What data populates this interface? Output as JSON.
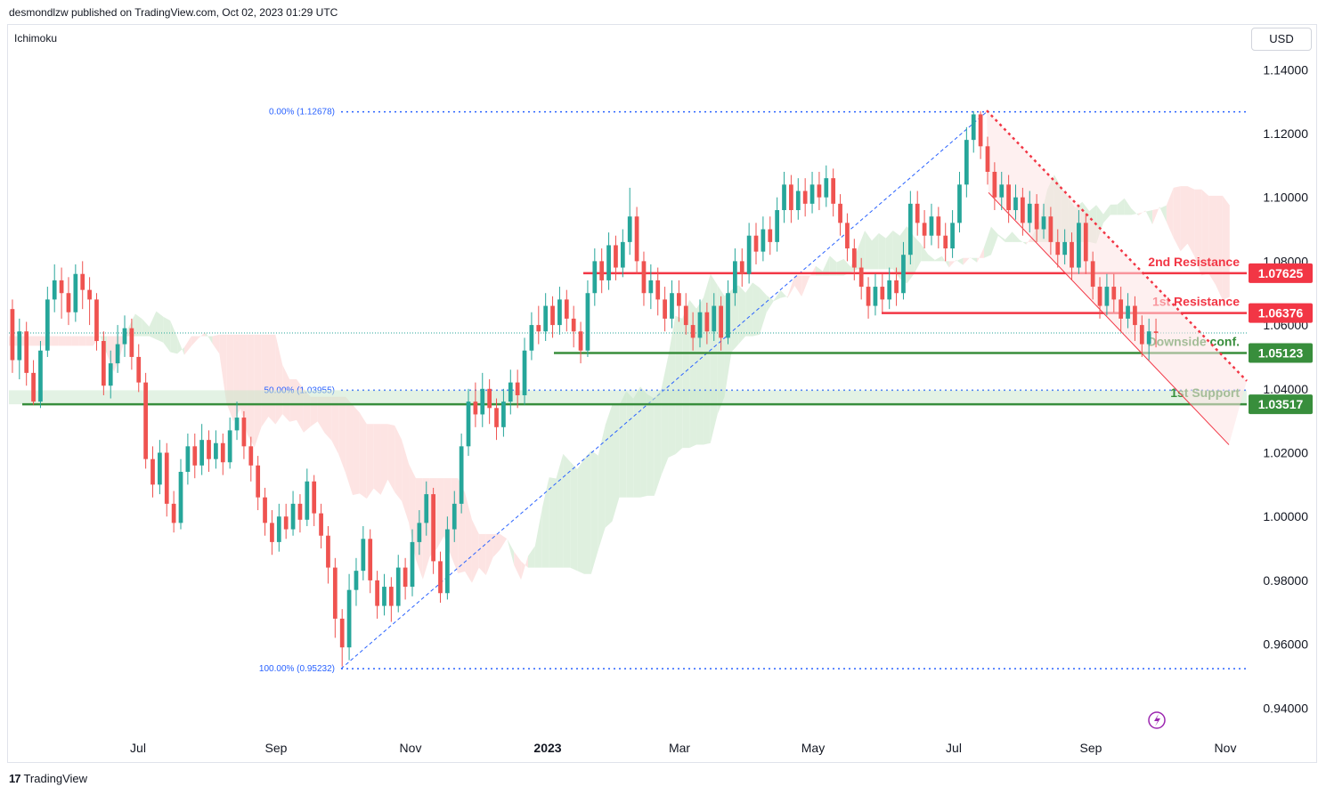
{
  "header": {
    "published": "desmondlzw published on TradingView.com, Oct 02, 2023 01:29 UTC",
    "indicator": "Ichimoku",
    "currency": "USD",
    "footer_logo": "TradingView"
  },
  "colors": {
    "up": "#26a69a",
    "down": "#ef5350",
    "resistance": "#f23645",
    "support": "#388e3c",
    "fib": "#2962ff",
    "cloud_bull": "#dff0df",
    "cloud_bear": "#fde4e3"
  },
  "chart_data": {
    "type": "candlestick",
    "ylim": [
      0.932,
      1.149
    ],
    "y_ticks": [
      "1.14000",
      "1.12000",
      "1.10000",
      "1.08000",
      "1.06000",
      "1.04000",
      "1.02000",
      "1.00000",
      "0.98000",
      "0.96000",
      "0.94000"
    ],
    "x_ticks": [
      "Jul",
      "Sep",
      "Nov",
      "2023",
      "Mar",
      "May",
      "Jul",
      "Sep",
      "Nov"
    ],
    "fib_levels": [
      {
        "label": "0.00% (1.12678)",
        "value": 1.12678
      },
      {
        "label": "50.00% (1.03955)",
        "value": 1.03955
      },
      {
        "label": "100.00% (0.95232)",
        "value": 0.95232
      }
    ],
    "levels": [
      {
        "name": "2nd Resistance",
        "value": 1.07625,
        "tag": "1.07625",
        "kind": "resistance"
      },
      {
        "name": "1st Resistance",
        "value": 1.06376,
        "tag": "1.06376",
        "kind": "resistance"
      },
      {
        "name": "Downside conf.",
        "value": 1.05123,
        "tag": "1.05123",
        "kind": "support"
      },
      {
        "name": "1st Support",
        "value": 1.03517,
        "tag": "1.03517",
        "kind": "support"
      }
    ],
    "last_price": 1.0575,
    "series": [
      {
        "values": [
          [
            1.065,
            1.049,
            1.068,
            1.045
          ],
          [
            1.049,
            1.058,
            1.062,
            1.043
          ],
          [
            1.058,
            1.045,
            1.061,
            1.041
          ],
          [
            1.045,
            1.036,
            1.049,
            1.035
          ],
          [
            1.036,
            1.052,
            1.055,
            1.034
          ],
          [
            1.052,
            1.068,
            1.072,
            1.05
          ],
          [
            1.068,
            1.074,
            1.079,
            1.064
          ],
          [
            1.074,
            1.07,
            1.078,
            1.062
          ],
          [
            1.07,
            1.064,
            1.075,
            1.06
          ],
          [
            1.064,
            1.076,
            1.079,
            1.061
          ],
          [
            1.076,
            1.071,
            1.08,
            1.065
          ],
          [
            1.071,
            1.068,
            1.075,
            1.06
          ],
          [
            1.068,
            1.055,
            1.07,
            1.052
          ],
          [
            1.055,
            1.041,
            1.058,
            1.038
          ],
          [
            1.041,
            1.048,
            1.052,
            1.037
          ],
          [
            1.048,
            1.054,
            1.06,
            1.045
          ],
          [
            1.054,
            1.059,
            1.063,
            1.05
          ],
          [
            1.059,
            1.05,
            1.062,
            1.046
          ],
          [
            1.05,
            1.042,
            1.054,
            1.039
          ],
          [
            1.042,
            1.018,
            1.045,
            1.015
          ],
          [
            1.018,
            1.01,
            1.022,
            1.006
          ],
          [
            1.01,
            1.02,
            1.024,
            1.007
          ],
          [
            1.02,
            1.004,
            1.023,
            1.0
          ],
          [
            1.004,
            0.998,
            1.008,
            0.995
          ],
          [
            0.998,
            1.014,
            1.018,
            0.996
          ],
          [
            1.014,
            1.022,
            1.026,
            1.01
          ],
          [
            1.022,
            1.016,
            1.026,
            1.012
          ],
          [
            1.016,
            1.024,
            1.029,
            1.013
          ],
          [
            1.024,
            1.018,
            1.027,
            1.014
          ],
          [
            1.018,
            1.023,
            1.027,
            1.015
          ],
          [
            1.023,
            1.017,
            1.026,
            1.013
          ],
          [
            1.017,
            1.027,
            1.031,
            1.015
          ],
          [
            1.027,
            1.031,
            1.036,
            1.024
          ],
          [
            1.031,
            1.022,
            1.033,
            1.018
          ],
          [
            1.022,
            1.016,
            1.025,
            1.011
          ],
          [
            1.016,
            1.006,
            1.019,
            1.002
          ],
          [
            1.006,
            0.998,
            1.009,
            0.994
          ],
          [
            0.998,
            0.992,
            1.002,
            0.988
          ],
          [
            0.992,
            1.0,
            1.004,
            0.989
          ],
          [
            1.0,
            0.996,
            1.004,
            0.993
          ],
          [
            0.996,
            1.004,
            1.008,
            0.994
          ],
          [
            1.004,
            0.999,
            1.007,
            0.995
          ],
          [
            0.999,
            1.011,
            1.015,
            0.997
          ],
          [
            1.011,
            1.001,
            1.013,
            0.997
          ],
          [
            1.001,
            0.994,
            1.004,
            0.99
          ],
          [
            0.994,
            0.984,
            0.997,
            0.979
          ],
          [
            0.984,
            0.968,
            0.987,
            0.962
          ],
          [
            0.968,
            0.959,
            0.971,
            0.953
          ],
          [
            0.959,
            0.977,
            0.982,
            0.955
          ],
          [
            0.977,
            0.983,
            0.987,
            0.972
          ],
          [
            0.983,
            0.993,
            0.997,
            0.98
          ],
          [
            0.993,
            0.98,
            0.996,
            0.976
          ],
          [
            0.98,
            0.972,
            0.983,
            0.968
          ],
          [
            0.972,
            0.978,
            0.982,
            0.969
          ],
          [
            0.978,
            0.972,
            0.981,
            0.967
          ],
          [
            0.972,
            0.984,
            0.988,
            0.97
          ],
          [
            0.984,
            0.978,
            0.987,
            0.974
          ],
          [
            0.978,
            0.992,
            0.996,
            0.975
          ],
          [
            0.992,
            0.998,
            1.002,
            0.988
          ],
          [
            0.998,
            1.007,
            1.011,
            0.994
          ],
          [
            1.007,
            0.986,
            1.009,
            0.982
          ],
          [
            0.986,
            0.976,
            0.989,
            0.973
          ],
          [
            0.976,
            0.996,
            1.0,
            0.974
          ],
          [
            0.996,
            1.004,
            1.008,
            0.992
          ],
          [
            1.004,
            1.022,
            1.026,
            1.001
          ],
          [
            1.022,
            1.036,
            1.04,
            1.019
          ],
          [
            1.036,
            1.032,
            1.042,
            1.028
          ],
          [
            1.032,
            1.04,
            1.045,
            1.028
          ],
          [
            1.04,
            1.034,
            1.043,
            1.029
          ],
          [
            1.034,
            1.028,
            1.037,
            1.024
          ],
          [
            1.028,
            1.036,
            1.04,
            1.025
          ],
          [
            1.036,
            1.042,
            1.046,
            1.032
          ],
          [
            1.042,
            1.038,
            1.046,
            1.034
          ],
          [
            1.038,
            1.052,
            1.056,
            1.035
          ],
          [
            1.052,
            1.06,
            1.064,
            1.049
          ],
          [
            1.06,
            1.058,
            1.066,
            1.054
          ],
          [
            1.058,
            1.066,
            1.07,
            1.055
          ],
          [
            1.066,
            1.06,
            1.069,
            1.056
          ],
          [
            1.06,
            1.068,
            1.072,
            1.057
          ],
          [
            1.068,
            1.062,
            1.071,
            1.058
          ],
          [
            1.062,
            1.058,
            1.066,
            1.053
          ],
          [
            1.058,
            1.052,
            1.061,
            1.048
          ],
          [
            1.052,
            1.07,
            1.074,
            1.05
          ],
          [
            1.07,
            1.08,
            1.084,
            1.066
          ],
          [
            1.08,
            1.074,
            1.084,
            1.07
          ],
          [
            1.074,
            1.085,
            1.089,
            1.071
          ],
          [
            1.085,
            1.078,
            1.088,
            1.074
          ],
          [
            1.078,
            1.086,
            1.09,
            1.075
          ],
          [
            1.086,
            1.094,
            1.103,
            1.082
          ],
          [
            1.094,
            1.08,
            1.097,
            1.076
          ],
          [
            1.08,
            1.07,
            1.083,
            1.066
          ],
          [
            1.07,
            1.074,
            1.079,
            1.065
          ],
          [
            1.074,
            1.068,
            1.078,
            1.063
          ],
          [
            1.068,
            1.062,
            1.072,
            1.058
          ],
          [
            1.062,
            1.07,
            1.074,
            1.059
          ],
          [
            1.07,
            1.066,
            1.074,
            1.061
          ],
          [
            1.066,
            1.06,
            1.07,
            1.057
          ],
          [
            1.06,
            1.056,
            1.064,
            1.052
          ],
          [
            1.056,
            1.064,
            1.068,
            1.053
          ],
          [
            1.064,
            1.058,
            1.067,
            1.054
          ],
          [
            1.058,
            1.066,
            1.07,
            1.055
          ],
          [
            1.066,
            1.056,
            1.069,
            1.052
          ],
          [
            1.056,
            1.07,
            1.074,
            1.054
          ],
          [
            1.07,
            1.08,
            1.084,
            1.066
          ],
          [
            1.08,
            1.076,
            1.084,
            1.072
          ],
          [
            1.076,
            1.088,
            1.092,
            1.073
          ],
          [
            1.088,
            1.083,
            1.092,
            1.079
          ],
          [
            1.083,
            1.09,
            1.094,
            1.08
          ],
          [
            1.09,
            1.086,
            1.094,
            1.082
          ],
          [
            1.086,
            1.096,
            1.1,
            1.083
          ],
          [
            1.096,
            1.104,
            1.108,
            1.092
          ],
          [
            1.104,
            1.096,
            1.107,
            1.092
          ],
          [
            1.096,
            1.102,
            1.106,
            1.093
          ],
          [
            1.102,
            1.098,
            1.106,
            1.094
          ],
          [
            1.098,
            1.104,
            1.108,
            1.095
          ],
          [
            1.104,
            1.1,
            1.108,
            1.096
          ],
          [
            1.1,
            1.106,
            1.11,
            1.097
          ],
          [
            1.106,
            1.098,
            1.109,
            1.094
          ],
          [
            1.098,
            1.092,
            1.101,
            1.088
          ],
          [
            1.092,
            1.084,
            1.095,
            1.08
          ],
          [
            1.084,
            1.078,
            1.087,
            1.074
          ],
          [
            1.078,
            1.072,
            1.081,
            1.068
          ],
          [
            1.072,
            1.066,
            1.075,
            1.062
          ],
          [
            1.066,
            1.072,
            1.076,
            1.063
          ],
          [
            1.072,
            1.068,
            1.076,
            1.064
          ],
          [
            1.068,
            1.074,
            1.078,
            1.065
          ],
          [
            1.074,
            1.07,
            1.078,
            1.066
          ],
          [
            1.07,
            1.082,
            1.086,
            1.068
          ],
          [
            1.082,
            1.098,
            1.102,
            1.079
          ],
          [
            1.098,
            1.092,
            1.102,
            1.088
          ],
          [
            1.092,
            1.088,
            1.096,
            1.084
          ],
          [
            1.088,
            1.094,
            1.098,
            1.085
          ],
          [
            1.094,
            1.088,
            1.097,
            1.084
          ],
          [
            1.088,
            1.084,
            1.092,
            1.08
          ],
          [
            1.084,
            1.092,
            1.096,
            1.081
          ],
          [
            1.092,
            1.104,
            1.108,
            1.089
          ],
          [
            1.104,
            1.118,
            1.122,
            1.1
          ],
          [
            1.118,
            1.126,
            1.127,
            1.114
          ],
          [
            1.126,
            1.116,
            1.127,
            1.112
          ],
          [
            1.116,
            1.108,
            1.119,
            1.104
          ],
          [
            1.108,
            1.1,
            1.111,
            1.096
          ],
          [
            1.1,
            1.104,
            1.108,
            1.096
          ],
          [
            1.104,
            1.096,
            1.107,
            1.092
          ],
          [
            1.096,
            1.1,
            1.104,
            1.093
          ],
          [
            1.1,
            1.092,
            1.103,
            1.088
          ],
          [
            1.092,
            1.098,
            1.102,
            1.089
          ],
          [
            1.098,
            1.09,
            1.101,
            1.086
          ],
          [
            1.09,
            1.094,
            1.098,
            1.087
          ],
          [
            1.094,
            1.086,
            1.097,
            1.082
          ],
          [
            1.086,
            1.082,
            1.09,
            1.078
          ],
          [
            1.082,
            1.086,
            1.09,
            1.079
          ],
          [
            1.086,
            1.078,
            1.089,
            1.074
          ],
          [
            1.078,
            1.092,
            1.096,
            1.076
          ],
          [
            1.092,
            1.08,
            1.095,
            1.076
          ],
          [
            1.08,
            1.072,
            1.083,
            1.068
          ],
          [
            1.072,
            1.066,
            1.075,
            1.062
          ],
          [
            1.066,
            1.072,
            1.076,
            1.063
          ],
          [
            1.072,
            1.068,
            1.076,
            1.064
          ],
          [
            1.068,
            1.062,
            1.072,
            1.058
          ],
          [
            1.062,
            1.066,
            1.07,
            1.059
          ],
          [
            1.066,
            1.06,
            1.069,
            1.055
          ],
          [
            1.06,
            1.054,
            1.063,
            1.05
          ],
          [
            1.054,
            1.058,
            1.062,
            1.049
          ],
          [
            1.058,
            1.0575,
            1.062,
            1.053
          ]
        ]
      }
    ]
  }
}
